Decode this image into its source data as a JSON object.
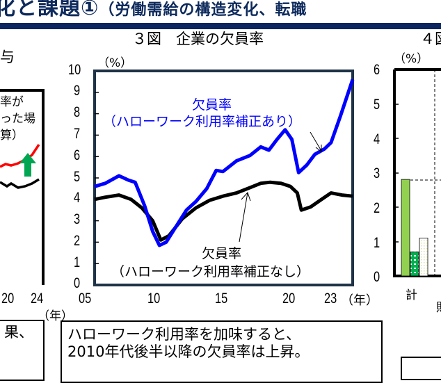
{
  "header": {
    "title": "化と課題①",
    "subtitle": "（労働需給の構造変化、転職",
    "color": "#0b2560"
  },
  "left_panel": {
    "title_fragment": "与",
    "legend_lines": [
      "率が",
      "った場",
      "算）"
    ],
    "x_ticks": [
      "20",
      "24"
    ],
    "x_unit": "（年）",
    "note_fragment": "果、",
    "colors": {
      "red_line": "#ff0000",
      "black_line": "#000000",
      "arrow": "#00a651"
    }
  },
  "figure3": {
    "title": "３図　企業の欠員率",
    "y_unit": "（%）",
    "y_ticks": [
      "10",
      "9",
      "8",
      "7",
      "6",
      "5",
      "4",
      "3",
      "2",
      "1",
      "0"
    ],
    "x_ticks": [
      "05",
      "10",
      "15",
      "20",
      "23"
    ],
    "x_unit": "（年）",
    "label_adjusted_line1": "欠員率",
    "label_adjusted_line2": "（ハローワーク利用率補正あり）",
    "label_unadjusted_line1": "欠員率",
    "label_unadjusted_line2": "（ハローワーク利用率補正なし）",
    "note_line1": "ハローワーク利用率を加味すると、",
    "note_line2": "2010年代後半以降の欠員率は上昇。"
  },
  "figure4": {
    "title_fragment": "４図",
    "y_unit": "（%）",
    "y_ticks": [
      "6",
      "5",
      "4",
      "3",
      "2",
      "1",
      "0"
    ],
    "x_label": "計",
    "x_label_fragment": "財",
    "bars": [
      {
        "value": 2.8,
        "color": "#92d050",
        "pattern": "solid"
      },
      {
        "value": 0.7,
        "color": "#00b050",
        "pattern": "dotted"
      },
      {
        "value": 1.1,
        "color": "#f2f7d9",
        "pattern": "dotted-light"
      }
    ]
  },
  "chart_data": [
    {
      "type": "line",
      "title": "３図　企業の欠員率",
      "xlabel": "（年）",
      "ylabel": "（%）",
      "ylim": [
        0,
        10
      ],
      "xlim": [
        2005.5,
        2024.6
      ],
      "x_tick_labels": [
        "05",
        "10",
        "15",
        "20",
        "23"
      ],
      "grid": false,
      "series": [
        {
          "name": "欠員率（ハローワーク利用率補正あり）",
          "color": "#0000ff",
          "x": [
            2005.5,
            2006.3,
            2007.3,
            2008.0,
            2008.5,
            2009.2,
            2009.8,
            2010.3,
            2010.8,
            2011.5,
            2012.3,
            2013.0,
            2013.8,
            2014.5,
            2015.0,
            2016.0,
            2017.0,
            2017.8,
            2018.4,
            2019.0,
            2019.6,
            2020.1,
            2020.6,
            2021.2,
            2021.8,
            2022.5,
            2023.0,
            2023.7,
            2024.6
          ],
          "y": [
            4.6,
            4.75,
            5.1,
            4.9,
            4.8,
            3.7,
            2.5,
            1.85,
            2.0,
            2.7,
            3.5,
            3.9,
            4.5,
            5.35,
            5.3,
            5.8,
            6.05,
            6.45,
            6.3,
            6.8,
            7.25,
            6.8,
            5.25,
            5.6,
            6.1,
            6.35,
            6.65,
            7.9,
            9.6
          ]
        },
        {
          "name": "欠員率（ハローワーク利用率補正なし）",
          "color": "#000000",
          "x": [
            2005.5,
            2006.3,
            2007.3,
            2008.2,
            2009.0,
            2009.8,
            2010.4,
            2011.0,
            2012.0,
            2013.0,
            2014.0,
            2015.0,
            2016.0,
            2017.0,
            2017.8,
            2018.5,
            2019.3,
            2020.0,
            2020.5,
            2020.8,
            2021.5,
            2022.3,
            2023.0,
            2023.8,
            2024.6
          ],
          "y": [
            4.0,
            4.1,
            4.2,
            4.0,
            3.6,
            3.0,
            2.1,
            2.3,
            3.1,
            3.6,
            3.95,
            4.15,
            4.3,
            4.55,
            4.75,
            4.8,
            4.75,
            4.6,
            4.3,
            3.5,
            3.65,
            4.0,
            4.3,
            4.2,
            4.15
          ]
        }
      ],
      "annotations": [
        "欠員率（ハローワーク利用率補正あり）",
        "欠員率（ハローワーク利用率補正なし）",
        "ハローワーク利用率を加味すると、2010年代後半以降の欠員率は上昇。"
      ]
    },
    {
      "type": "bar",
      "title": "４図",
      "ylabel": "（%）",
      "ylim": [
        0,
        6
      ],
      "categories": [
        "計"
      ],
      "series": [
        {
          "name": "series1",
          "values": [
            2.8
          ]
        },
        {
          "name": "series2",
          "values": [
            0.7
          ]
        },
        {
          "name": "series3",
          "values": [
            1.1
          ]
        }
      ]
    }
  ]
}
